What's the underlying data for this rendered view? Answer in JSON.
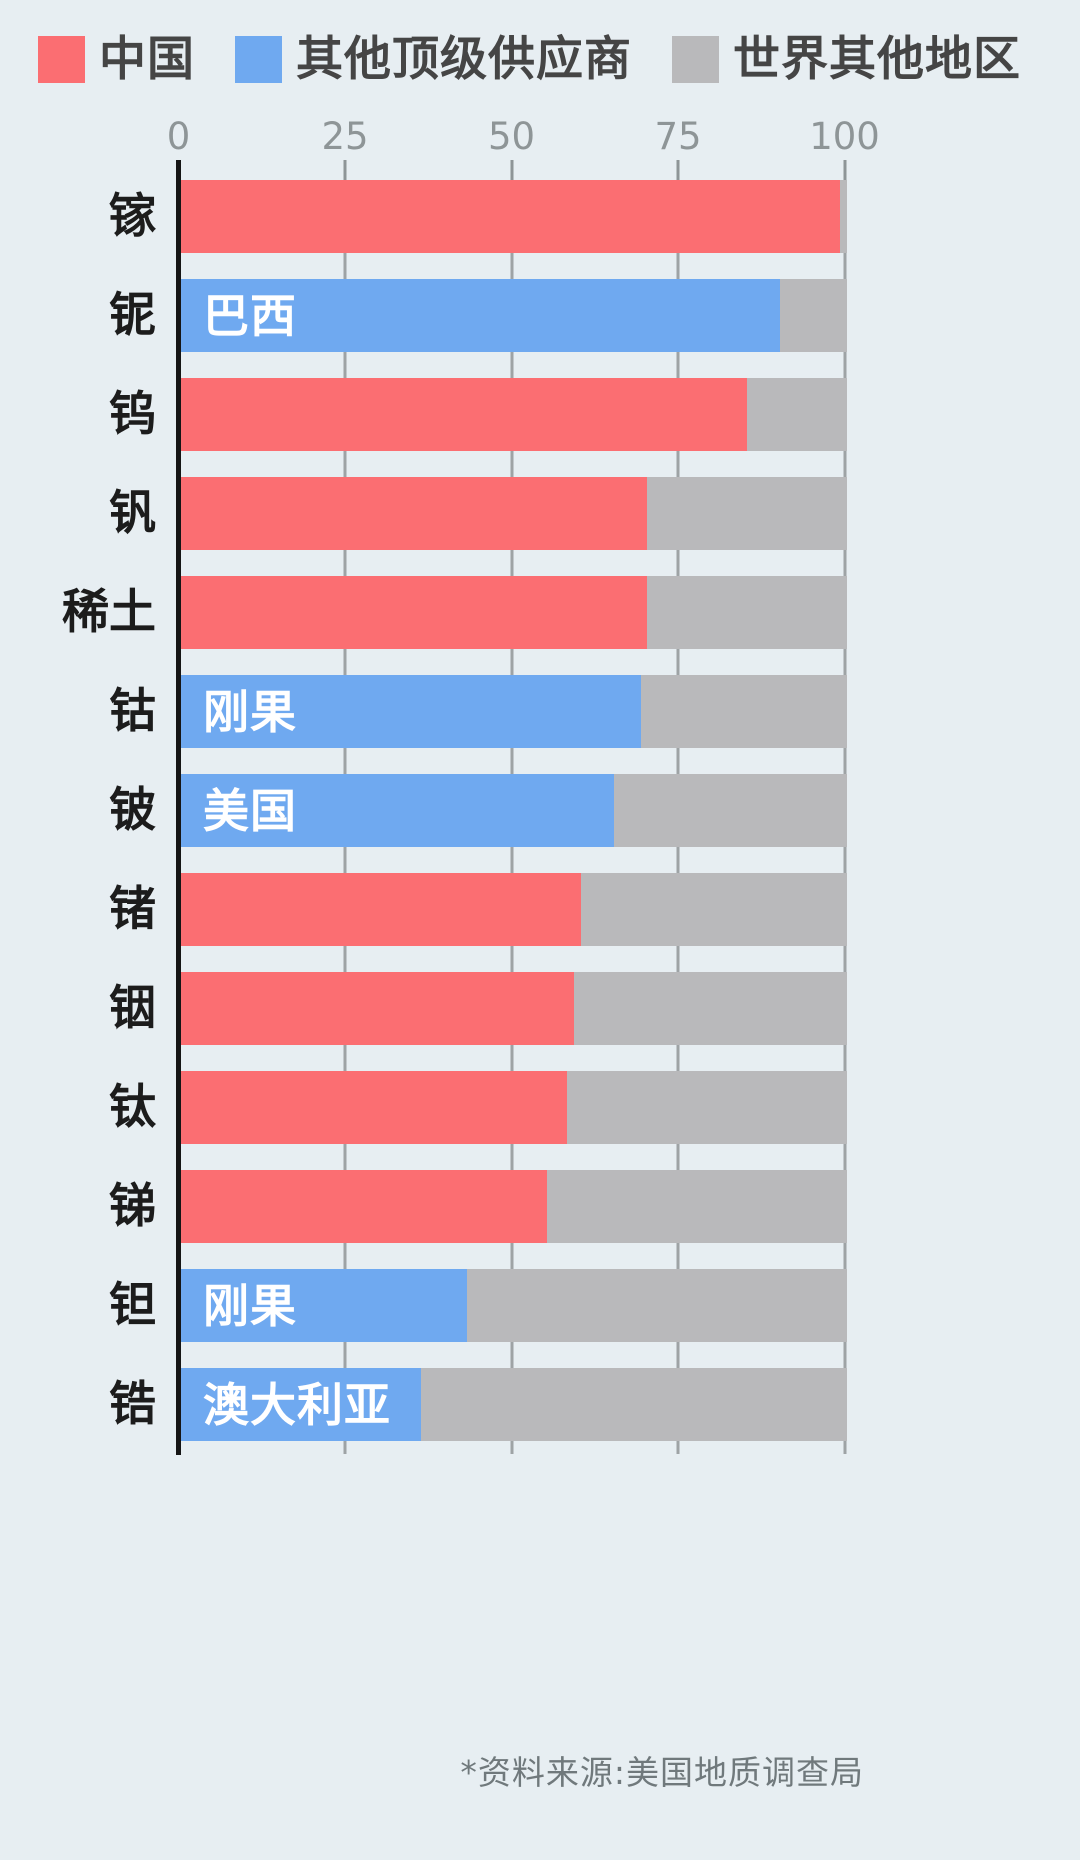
{
  "legend": [
    {
      "name": "china",
      "label": "中国",
      "color": "#FB6E72"
    },
    {
      "name": "other-supplier",
      "label": "其他顶级供应商",
      "color": "#6FA9F0"
    },
    {
      "name": "rest-of-world",
      "label": "世界其他地区",
      "color": "#B9B9BB"
    }
  ],
  "colors": {
    "china": "#FB6E72",
    "other_supplier": "#6FA9F0",
    "rest_of_world": "#B9B9BB",
    "background": "#E7EEF2",
    "axis": "#151515",
    "gridline": "#9EA3A5",
    "tick_text": "#8E9597"
  },
  "chart_data": {
    "type": "bar",
    "orientation": "horizontal",
    "unit": "percent of supply",
    "xlim": [
      0,
      100
    ],
    "x_ticks": [
      0,
      25,
      50,
      75,
      100
    ],
    "grid": true,
    "legend_position": "top-left",
    "legend_entries": [
      "中国",
      "其他顶级供应商",
      "世界其他地区"
    ],
    "remainder_series": "世界其他地区",
    "rows": [
      {
        "category": "镓",
        "value": 99,
        "series": "china",
        "bar_label": ""
      },
      {
        "category": "铌",
        "value": 90,
        "series": "other",
        "bar_label": "巴西"
      },
      {
        "category": "钨",
        "value": 85,
        "series": "china",
        "bar_label": ""
      },
      {
        "category": "钒",
        "value": 70,
        "series": "china",
        "bar_label": ""
      },
      {
        "category": "稀土",
        "value": 70,
        "series": "china",
        "bar_label": ""
      },
      {
        "category": "钴",
        "value": 69,
        "series": "other",
        "bar_label": "刚果"
      },
      {
        "category": "铍",
        "value": 65,
        "series": "other",
        "bar_label": "美国"
      },
      {
        "category": "锗",
        "value": 60,
        "series": "china",
        "bar_label": ""
      },
      {
        "category": "铟",
        "value": 59,
        "series": "china",
        "bar_label": ""
      },
      {
        "category": "钛",
        "value": 58,
        "series": "china",
        "bar_label": ""
      },
      {
        "category": "锑",
        "value": 55,
        "series": "china",
        "bar_label": ""
      },
      {
        "category": "钽",
        "value": 43,
        "series": "other",
        "bar_label": "刚果"
      },
      {
        "category": "锆",
        "value": 36,
        "series": "other",
        "bar_label": "澳大利亚"
      }
    ]
  },
  "source_note": "*资料来源:美国地质调查局"
}
